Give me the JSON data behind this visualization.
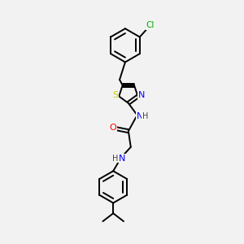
{
  "background_color": "#f2f2f2",
  "bond_color": "#000000",
  "atom_colors": {
    "N": "#0000ff",
    "O": "#ff0000",
    "S": "#cccc00",
    "Cl": "#00aa00",
    "C": "#000000",
    "H": "#444444"
  },
  "figsize": [
    3.0,
    3.0
  ],
  "dpi": 100
}
